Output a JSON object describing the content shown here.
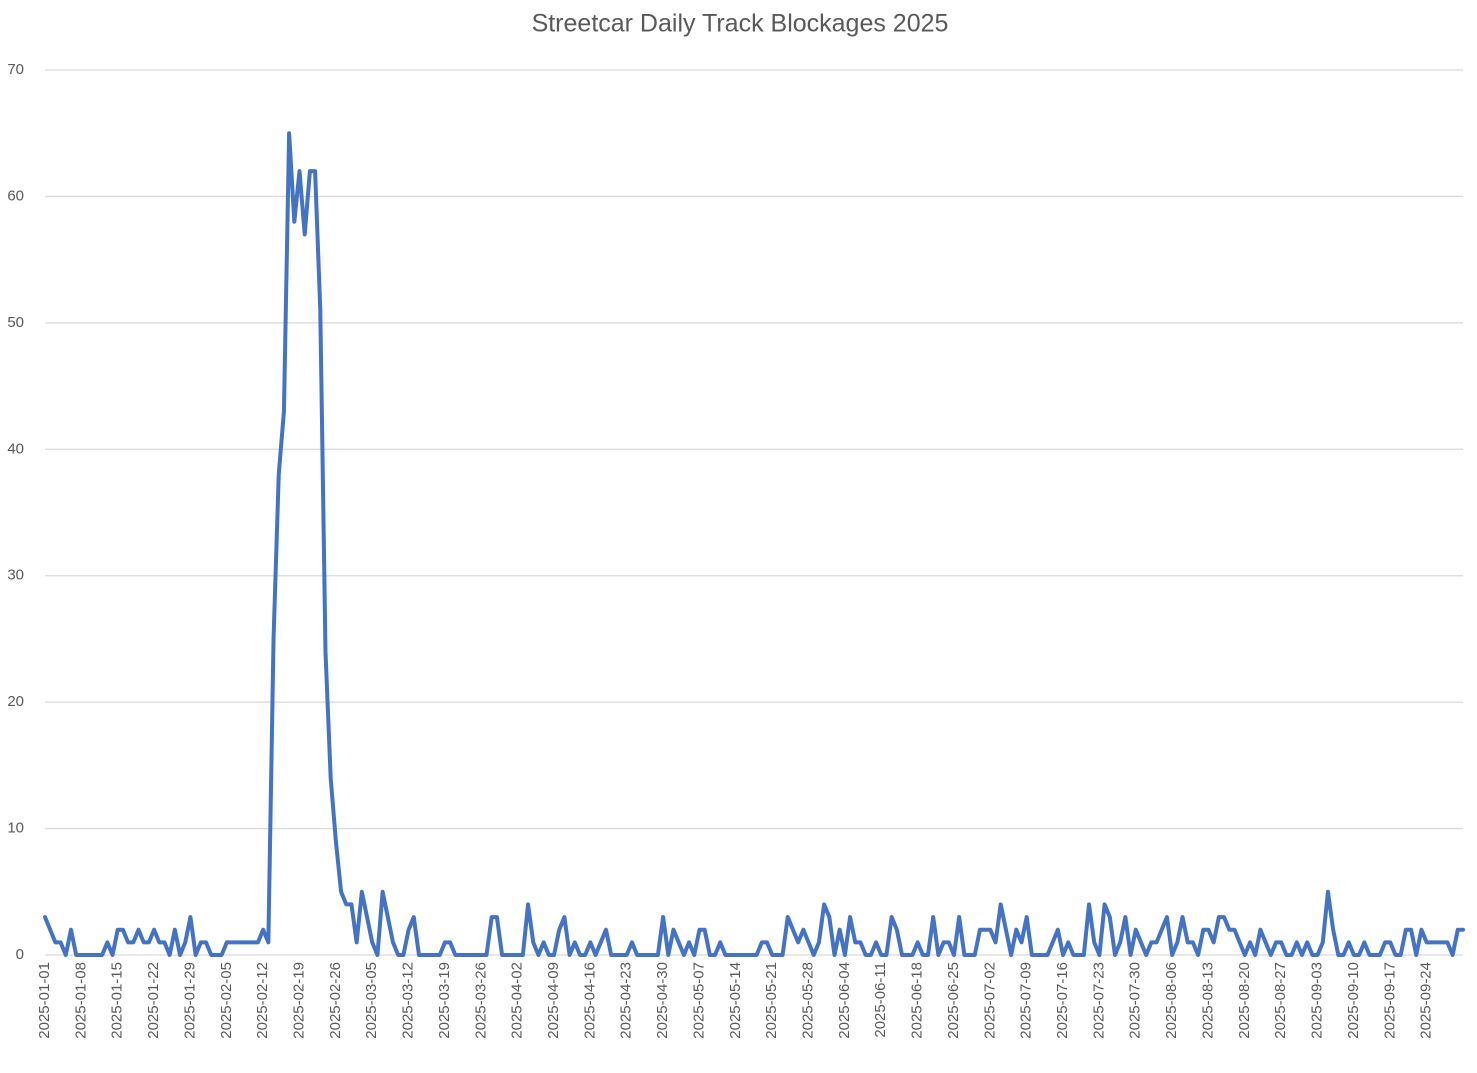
{
  "chart_data": {
    "type": "line",
    "title": "Streetcar Daily Track Blockages 2025",
    "categories": [
      "2025-01-01",
      null,
      null,
      null,
      null,
      null,
      null,
      "2025-01-08",
      null,
      null,
      null,
      null,
      null,
      null,
      "2025-01-15",
      null,
      null,
      null,
      null,
      null,
      null,
      "2025-01-22",
      null,
      null,
      null,
      null,
      null,
      null,
      "2025-01-29",
      null,
      null,
      null,
      null,
      null,
      null,
      "2025-02-05",
      null,
      null,
      null,
      null,
      null,
      null,
      "2025-02-12",
      null,
      null,
      null,
      null,
      null,
      null,
      "2025-02-19",
      null,
      null,
      null,
      null,
      null,
      null,
      "2025-02-26",
      null,
      null,
      null,
      null,
      null,
      null,
      "2025-03-05",
      null,
      null,
      null,
      null,
      null,
      null,
      "2025-03-12",
      null,
      null,
      null,
      null,
      null,
      null,
      "2025-03-19",
      null,
      null,
      null,
      null,
      null,
      null,
      "2025-03-26",
      null,
      null,
      null,
      null,
      null,
      null,
      "2025-04-02",
      null,
      null,
      null,
      null,
      null,
      null,
      "2025-04-09",
      null,
      null,
      null,
      null,
      null,
      null,
      "2025-04-16",
      null,
      null,
      null,
      null,
      null,
      null,
      "2025-04-23",
      null,
      null,
      null,
      null,
      null,
      null,
      "2025-04-30",
      null,
      null,
      null,
      null,
      null,
      null,
      "2025-05-07",
      null,
      null,
      null,
      null,
      null,
      null,
      "2025-05-14",
      null,
      null,
      null,
      null,
      null,
      null,
      "2025-05-21",
      null,
      null,
      null,
      null,
      null,
      null,
      "2025-05-28",
      null,
      null,
      null,
      null,
      null,
      null,
      "2025-06-04",
      null,
      null,
      null,
      null,
      null,
      null,
      "2025-06-11",
      null,
      null,
      null,
      null,
      null,
      null,
      "2025-06-18",
      null,
      null,
      null,
      null,
      null,
      null,
      "2025-06-25",
      null,
      null,
      null,
      null,
      null,
      null,
      "2025-07-02",
      null,
      null,
      null,
      null,
      null,
      null,
      "2025-07-09",
      null,
      null,
      null,
      null,
      null,
      null,
      "2025-07-16",
      null,
      null,
      null,
      null,
      null,
      null,
      "2025-07-23",
      null,
      null,
      null,
      null,
      null,
      null,
      "2025-07-30",
      null,
      null,
      null,
      null,
      null,
      null,
      "2025-08-06",
      null,
      null,
      null,
      null,
      null,
      null,
      "2025-08-13",
      null,
      null,
      null,
      null,
      null,
      null,
      "2025-08-20",
      null,
      null,
      null,
      null,
      null,
      null,
      "2025-08-27",
      null,
      null,
      null,
      null,
      null,
      null,
      "2025-09-03",
      null,
      null,
      null,
      null,
      null,
      null,
      "2025-09-10",
      null,
      null,
      null,
      null,
      null,
      null,
      "2025-09-17",
      null,
      null,
      null,
      null,
      null,
      null,
      "2025-09-24",
      null,
      null,
      null,
      null,
      null,
      null,
      null
    ],
    "values": [
      3,
      2,
      1,
      1,
      0,
      2,
      0,
      0,
      0,
      0,
      0,
      0,
      1,
      0,
      2,
      2,
      1,
      1,
      2,
      1,
      1,
      2,
      1,
      1,
      0,
      2,
      0,
      1,
      3,
      0,
      1,
      1,
      0,
      0,
      0,
      1,
      1,
      1,
      1,
      1,
      1,
      1,
      2,
      1,
      25,
      38,
      43,
      65,
      58,
      62,
      57,
      62,
      62,
      51,
      24,
      14,
      9,
      5,
      4,
      4,
      1,
      5,
      3,
      1,
      0,
      5,
      3,
      1,
      0,
      0,
      2,
      3,
      0,
      0,
      0,
      0,
      0,
      1,
      1,
      0,
      0,
      0,
      0,
      0,
      0,
      0,
      3,
      3,
      0,
      0,
      0,
      0,
      0,
      4,
      1,
      0,
      1,
      0,
      0,
      2,
      3,
      0,
      1,
      0,
      0,
      1,
      0,
      1,
      2,
      0,
      0,
      0,
      0,
      1,
      0,
      0,
      0,
      0,
      0,
      3,
      0,
      2,
      1,
      0,
      1,
      0,
      2,
      2,
      0,
      0,
      1,
      0,
      0,
      0,
      0,
      0,
      0,
      0,
      1,
      1,
      0,
      0,
      0,
      3,
      2,
      1,
      2,
      1,
      0,
      1,
      4,
      3,
      0,
      2,
      0,
      3,
      1,
      1,
      0,
      0,
      1,
      0,
      0,
      3,
      2,
      0,
      0,
      0,
      1,
      0,
      0,
      3,
      0,
      1,
      1,
      0,
      3,
      0,
      0,
      0,
      2,
      2,
      2,
      1,
      4,
      2,
      0,
      2,
      1,
      3,
      0,
      0,
      0,
      0,
      1,
      2,
      0,
      1,
      0,
      0,
      0,
      4,
      1,
      0,
      4,
      3,
      0,
      1,
      3,
      0,
      2,
      1,
      0,
      1,
      1,
      2,
      3,
      0,
      1,
      3,
      1,
      1,
      0,
      2,
      2,
      1,
      3,
      3,
      2,
      2,
      1,
      0,
      1,
      0,
      2,
      1,
      0,
      1,
      1,
      0,
      0,
      1,
      0,
      1,
      0,
      0,
      1,
      5,
      2,
      0,
      0,
      1,
      0,
      0,
      1,
      0,
      0,
      0,
      1,
      1,
      0,
      0,
      2,
      2,
      0,
      2,
      1,
      1,
      1,
      1,
      1,
      0,
      2,
      2
    ],
    "color": "#4472c4",
    "ylim": [
      0,
      70
    ],
    "yticks": [
      0,
      10,
      20,
      30,
      40,
      50,
      60,
      70
    ],
    "grid": true
  }
}
